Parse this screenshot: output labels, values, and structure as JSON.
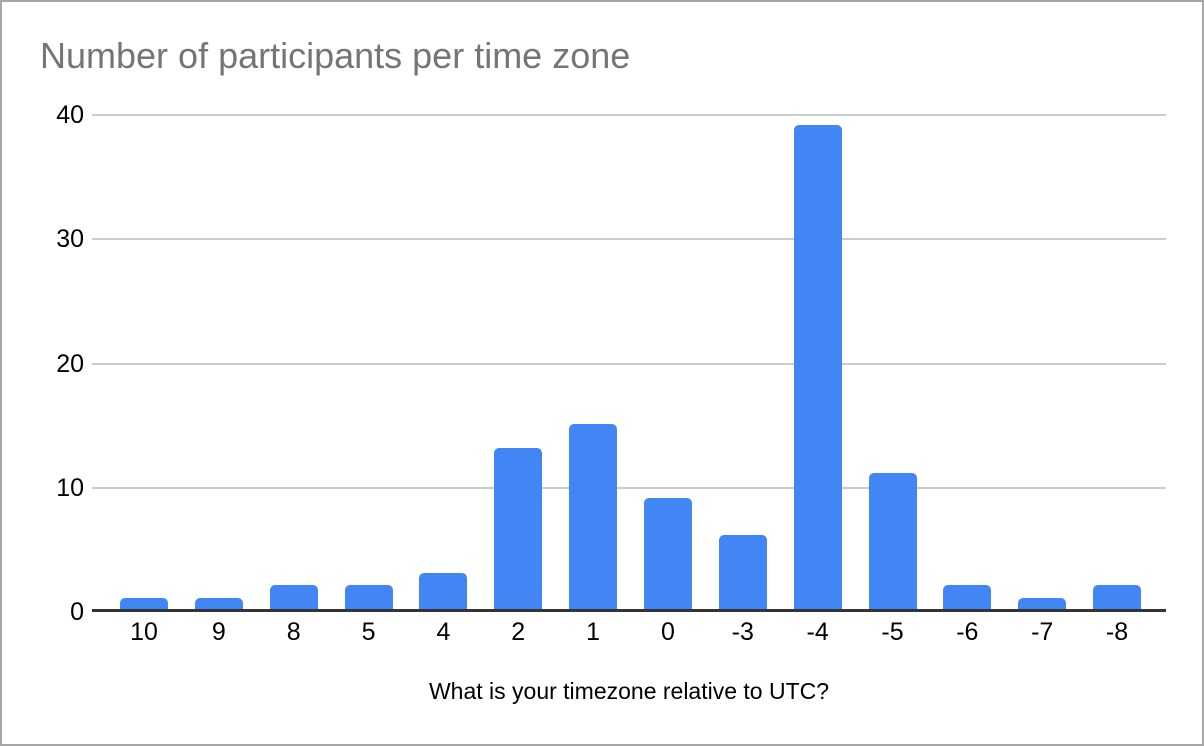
{
  "window": {
    "background": "#ffffff",
    "border_color": "#a6a6a6"
  },
  "chart_data": {
    "type": "bar",
    "title": "Number of participants per time zone",
    "xlabel": "What is your timezone relative to UTC?",
    "ylabel": "",
    "categories": [
      "10",
      "9",
      "8",
      "5",
      "4",
      "2",
      "1",
      "0",
      "-3",
      "-4",
      "-5",
      "-6",
      "-7",
      "-8"
    ],
    "values": [
      1,
      1,
      2,
      2,
      3,
      13,
      15,
      9,
      6,
      39,
      11,
      2,
      1,
      2
    ],
    "ylim": [
      0,
      40
    ],
    "yticks": [
      0,
      10,
      20,
      30,
      40
    ],
    "grid": true,
    "legend_position": "none",
    "bar_color": "#4285f4"
  },
  "colors": {
    "bar": "#4285f4",
    "title_text": "#757575",
    "tick_text": "#000000",
    "gridline": "#cccccc",
    "axis_line": "#333333",
    "frame_border": "#a6a6a6",
    "background": "#ffffff"
  }
}
